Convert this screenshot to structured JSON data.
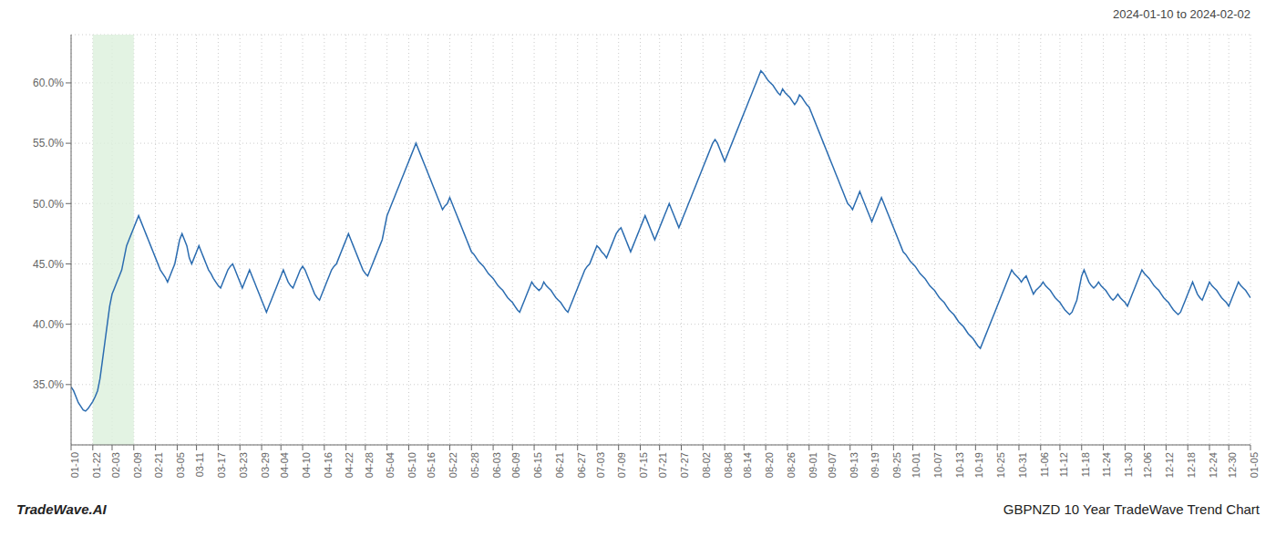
{
  "chart_data": {
    "type": "line",
    "title": "2024-01-10 to 2024-02-02",
    "annotations": [
      {
        "text": "TradeWave.AI"
      },
      {
        "text": "GBPNZD 10 Year TradeWave Trend Chart"
      }
    ],
    "color": "#2b6cb0",
    "grid": true,
    "highlight": {
      "from": "01-22",
      "to": "02-09",
      "color": "#dcf0dc"
    },
    "ylim": [
      30.0,
      64.0
    ],
    "yticks": [
      {
        "value": 35.0,
        "label": "35.0%"
      },
      {
        "value": 40.0,
        "label": "40.0%"
      },
      {
        "value": 45.0,
        "label": "45.0%"
      },
      {
        "value": 50.0,
        "label": "50.0%"
      },
      {
        "value": 55.0,
        "label": "55.0%"
      },
      {
        "value": 60.0,
        "label": "60.0%"
      }
    ],
    "categories": [
      "01-10",
      null,
      null,
      null,
      null,
      null,
      null,
      null,
      null,
      "01-22",
      null,
      null,
      null,
      null,
      null,
      null,
      null,
      "02-03",
      null,
      null,
      null,
      null,
      null,
      null,
      null,
      null,
      "02-09",
      null,
      null,
      null,
      null,
      null,
      null,
      null,
      null,
      "02-21",
      null,
      null,
      null,
      null,
      null,
      null,
      null,
      null,
      "03-05",
      null,
      null,
      null,
      null,
      null,
      null,
      null,
      "03-11",
      null,
      null,
      null,
      null,
      null,
      null,
      null,
      null,
      "03-17",
      null,
      null,
      null,
      null,
      null,
      null,
      null,
      null,
      "03-23",
      null,
      null,
      null,
      null,
      null,
      null,
      null,
      null,
      "03-29",
      null,
      null,
      null,
      null,
      null,
      null,
      null,
      "04-04",
      null,
      null,
      null,
      null,
      null,
      null,
      null,
      null,
      "04-10",
      null,
      null,
      null,
      null,
      null,
      null,
      null,
      null,
      "04-16",
      null,
      null,
      null,
      null,
      null,
      null,
      null,
      null,
      "04-22",
      null,
      null,
      null,
      null,
      null,
      null,
      null,
      "04-28",
      null,
      null,
      null,
      null,
      null,
      null,
      null,
      null,
      "05-04",
      null,
      null,
      null,
      null,
      null,
      null,
      null,
      null,
      "05-10",
      null,
      null,
      null,
      null,
      null,
      null,
      null,
      "05-16",
      null,
      null,
      null,
      null,
      null,
      null,
      null,
      null,
      "05-22",
      null,
      null,
      null,
      null,
      null,
      null,
      null,
      null,
      "05-28",
      null,
      null,
      null,
      null,
      null,
      null,
      null,
      null,
      "06-03",
      null,
      null,
      null,
      null,
      null,
      null,
      null,
      "06-09",
      null,
      null,
      null,
      null,
      null,
      null,
      null,
      null,
      "06-15",
      null,
      null,
      null,
      null,
      null,
      null,
      null,
      null,
      "06-21",
      null,
      null,
      null,
      null,
      null,
      null,
      null,
      null,
      "06-27",
      null,
      null,
      null,
      null,
      null,
      null,
      null,
      "07-03",
      null,
      null,
      null,
      null,
      null,
      null,
      null,
      null,
      "07-09",
      null,
      null,
      null,
      null,
      null,
      null,
      null,
      null,
      "07-15",
      null,
      null,
      null,
      null,
      null,
      null,
      null,
      "07-21",
      null,
      null,
      null,
      null,
      null,
      null,
      null,
      null,
      "07-27",
      null,
      null,
      null,
      null,
      null,
      null,
      null,
      null,
      "08-02",
      null,
      null,
      null,
      null,
      null,
      null,
      null,
      null,
      "08-08",
      null,
      null,
      null,
      null,
      null,
      null,
      null,
      "08-14",
      null,
      null,
      null,
      null,
      null,
      null,
      null,
      null,
      "08-20",
      null,
      null,
      null,
      null,
      null,
      null,
      null,
      null,
      "08-26",
      null,
      null,
      null,
      null,
      null,
      null,
      null,
      null,
      "09-01",
      null,
      null,
      null,
      null,
      null,
      null,
      null,
      "09-07",
      null,
      null,
      null,
      null,
      null,
      null,
      null,
      null,
      "09-13",
      null,
      null,
      null,
      null,
      null,
      null,
      null,
      null,
      "09-19",
      null,
      null,
      null,
      null,
      null,
      null,
      null,
      null,
      "09-25",
      null,
      null,
      null,
      null,
      null,
      null,
      null,
      "10-01",
      null,
      null,
      null,
      null,
      null,
      null,
      null,
      null,
      "10-07",
      null,
      null,
      null,
      null,
      null,
      null,
      null,
      null,
      "10-13",
      null,
      null,
      null,
      null,
      null,
      null,
      null,
      "10-19",
      null,
      null,
      null,
      null,
      null,
      null,
      null,
      null,
      "10-25",
      null,
      null,
      null,
      null,
      null,
      null,
      null,
      null,
      "10-31",
      null,
      null,
      null,
      null,
      null,
      null,
      null,
      null,
      "11-06",
      null,
      null,
      null,
      null,
      null,
      null,
      null,
      "11-12",
      null,
      null,
      null,
      null,
      null,
      null,
      null,
      null,
      "11-18",
      null,
      null,
      null,
      null,
      null,
      null,
      null,
      null,
      "11-24",
      null,
      null,
      null,
      null,
      null,
      null,
      null,
      null,
      "11-30",
      null,
      null,
      null,
      null,
      null,
      null,
      null,
      "12-06",
      null,
      null,
      null,
      null,
      null,
      null,
      null,
      null,
      "12-12",
      null,
      null,
      null,
      null,
      null,
      null,
      null,
      null,
      "12-18",
      null,
      null,
      null,
      null,
      null,
      null,
      null,
      null,
      "12-24",
      null,
      null,
      null,
      null,
      null,
      null,
      null,
      "12-30",
      null,
      null,
      null,
      null,
      null,
      null,
      null,
      null,
      "01-05"
    ],
    "values": [
      34.8,
      34.5,
      34.0,
      33.5,
      33.2,
      32.9,
      32.8,
      33.0,
      33.3,
      33.6,
      34.0,
      34.5,
      35.5,
      37.0,
      38.5,
      40.0,
      41.5,
      42.5,
      43.0,
      43.5,
      44.0,
      44.5,
      45.5,
      46.5,
      47.0,
      47.5,
      48.0,
      48.5,
      49.0,
      48.5,
      48.0,
      47.5,
      47.0,
      46.5,
      46.0,
      45.5,
      45.0,
      44.5,
      44.2,
      43.9,
      43.5,
      44.0,
      44.5,
      45.0,
      46.0,
      47.0,
      47.5,
      47.0,
      46.5,
      45.5,
      45.0,
      45.5,
      46.0,
      46.5,
      46.0,
      45.5,
      45.0,
      44.5,
      44.2,
      43.8,
      43.5,
      43.2,
      43.0,
      43.5,
      44.0,
      44.5,
      44.8,
      45.0,
      44.5,
      44.0,
      43.5,
      43.0,
      43.5,
      44.0,
      44.5,
      44.0,
      43.5,
      43.0,
      42.5,
      42.0,
      41.5,
      41.0,
      41.5,
      42.0,
      42.5,
      43.0,
      43.5,
      44.0,
      44.5,
      44.0,
      43.5,
      43.2,
      43.0,
      43.5,
      44.0,
      44.5,
      44.8,
      44.5,
      44.0,
      43.5,
      43.0,
      42.5,
      42.2,
      42.0,
      42.5,
      43.0,
      43.5,
      44.0,
      44.5,
      44.8,
      45.0,
      45.5,
      46.0,
      46.5,
      47.0,
      47.5,
      47.0,
      46.5,
      46.0,
      45.5,
      45.0,
      44.5,
      44.2,
      44.0,
      44.5,
      45.0,
      45.5,
      46.0,
      46.5,
      47.0,
      48.0,
      49.0,
      49.5,
      50.0,
      50.5,
      51.0,
      51.5,
      52.0,
      52.5,
      53.0,
      53.5,
      54.0,
      54.5,
      55.0,
      54.5,
      54.0,
      53.5,
      53.0,
      52.5,
      52.0,
      51.5,
      51.0,
      50.5,
      50.0,
      49.5,
      49.8,
      50.0,
      50.5,
      50.0,
      49.5,
      49.0,
      48.5,
      48.0,
      47.5,
      47.0,
      46.5,
      46.0,
      45.8,
      45.5,
      45.2,
      45.0,
      44.8,
      44.5,
      44.2,
      44.0,
      43.8,
      43.5,
      43.2,
      43.0,
      42.8,
      42.5,
      42.2,
      42.0,
      41.8,
      41.5,
      41.2,
      41.0,
      41.5,
      42.0,
      42.5,
      43.0,
      43.5,
      43.2,
      43.0,
      42.8,
      43.0,
      43.5,
      43.2,
      43.0,
      42.8,
      42.5,
      42.2,
      42.0,
      41.8,
      41.5,
      41.2,
      41.0,
      41.5,
      42.0,
      42.5,
      43.0,
      43.5,
      44.0,
      44.5,
      44.8,
      45.0,
      45.5,
      46.0,
      46.5,
      46.3,
      46.0,
      45.8,
      45.5,
      46.0,
      46.5,
      47.0,
      47.5,
      47.8,
      48.0,
      47.5,
      47.0,
      46.5,
      46.0,
      46.5,
      47.0,
      47.5,
      48.0,
      48.5,
      49.0,
      48.5,
      48.0,
      47.5,
      47.0,
      47.5,
      48.0,
      48.5,
      49.0,
      49.5,
      50.0,
      49.5,
      49.0,
      48.5,
      48.0,
      48.5,
      49.0,
      49.5,
      50.0,
      50.5,
      51.0,
      51.5,
      52.0,
      52.5,
      53.0,
      53.5,
      54.0,
      54.5,
      55.0,
      55.3,
      55.0,
      54.5,
      54.0,
      53.5,
      54.0,
      54.5,
      55.0,
      55.5,
      56.0,
      56.5,
      57.0,
      57.5,
      58.0,
      58.5,
      59.0,
      59.5,
      60.0,
      60.5,
      61.0,
      60.8,
      60.5,
      60.2,
      60.0,
      59.8,
      59.5,
      59.2,
      59.0,
      59.5,
      59.2,
      59.0,
      58.8,
      58.5,
      58.2,
      58.5,
      59.0,
      58.8,
      58.5,
      58.2,
      58.0,
      57.5,
      57.0,
      56.5,
      56.0,
      55.5,
      55.0,
      54.5,
      54.0,
      53.5,
      53.0,
      52.5,
      52.0,
      51.5,
      51.0,
      50.5,
      50.0,
      49.8,
      49.5,
      50.0,
      50.5,
      51.0,
      50.5,
      50.0,
      49.5,
      49.0,
      48.5,
      49.0,
      49.5,
      50.0,
      50.5,
      50.0,
      49.5,
      49.0,
      48.5,
      48.0,
      47.5,
      47.0,
      46.5,
      46.0,
      45.8,
      45.5,
      45.2,
      45.0,
      44.8,
      44.5,
      44.2,
      44.0,
      43.8,
      43.5,
      43.2,
      43.0,
      42.8,
      42.5,
      42.2,
      42.0,
      41.8,
      41.5,
      41.2,
      41.0,
      40.8,
      40.5,
      40.2,
      40.0,
      39.8,
      39.5,
      39.2,
      39.0,
      38.8,
      38.5,
      38.2,
      38.0,
      38.5,
      39.0,
      39.5,
      40.0,
      40.5,
      41.0,
      41.5,
      42.0,
      42.5,
      43.0,
      43.5,
      44.0,
      44.5,
      44.2,
      44.0,
      43.8,
      43.5,
      43.8,
      44.0,
      43.5,
      43.0,
      42.5,
      42.8,
      43.0,
      43.2,
      43.5,
      43.2,
      43.0,
      42.8,
      42.5,
      42.2,
      42.0,
      41.8,
      41.5,
      41.2,
      41.0,
      40.8,
      41.0,
      41.5,
      42.0,
      43.0,
      44.0,
      44.5,
      44.0,
      43.5,
      43.2,
      43.0,
      43.2,
      43.5,
      43.2,
      43.0,
      42.8,
      42.5,
      42.2,
      42.0,
      42.2,
      42.5,
      42.2,
      42.0,
      41.8,
      41.5,
      42.0,
      42.5,
      43.0,
      43.5,
      44.0,
      44.5,
      44.2,
      44.0,
      43.8,
      43.5,
      43.2,
      43.0,
      42.8,
      42.5,
      42.2,
      42.0,
      41.8,
      41.5,
      41.2,
      41.0,
      40.8,
      41.0,
      41.5,
      42.0,
      42.5,
      43.0,
      43.5,
      43.0,
      42.5,
      42.2,
      42.0,
      42.5,
      43.0,
      43.5,
      43.2,
      43.0,
      42.8,
      42.5,
      42.2,
      42.0,
      41.8,
      41.5,
      42.0,
      42.5,
      43.0,
      43.5,
      43.2,
      43.0,
      42.8,
      42.5,
      42.2
    ]
  }
}
